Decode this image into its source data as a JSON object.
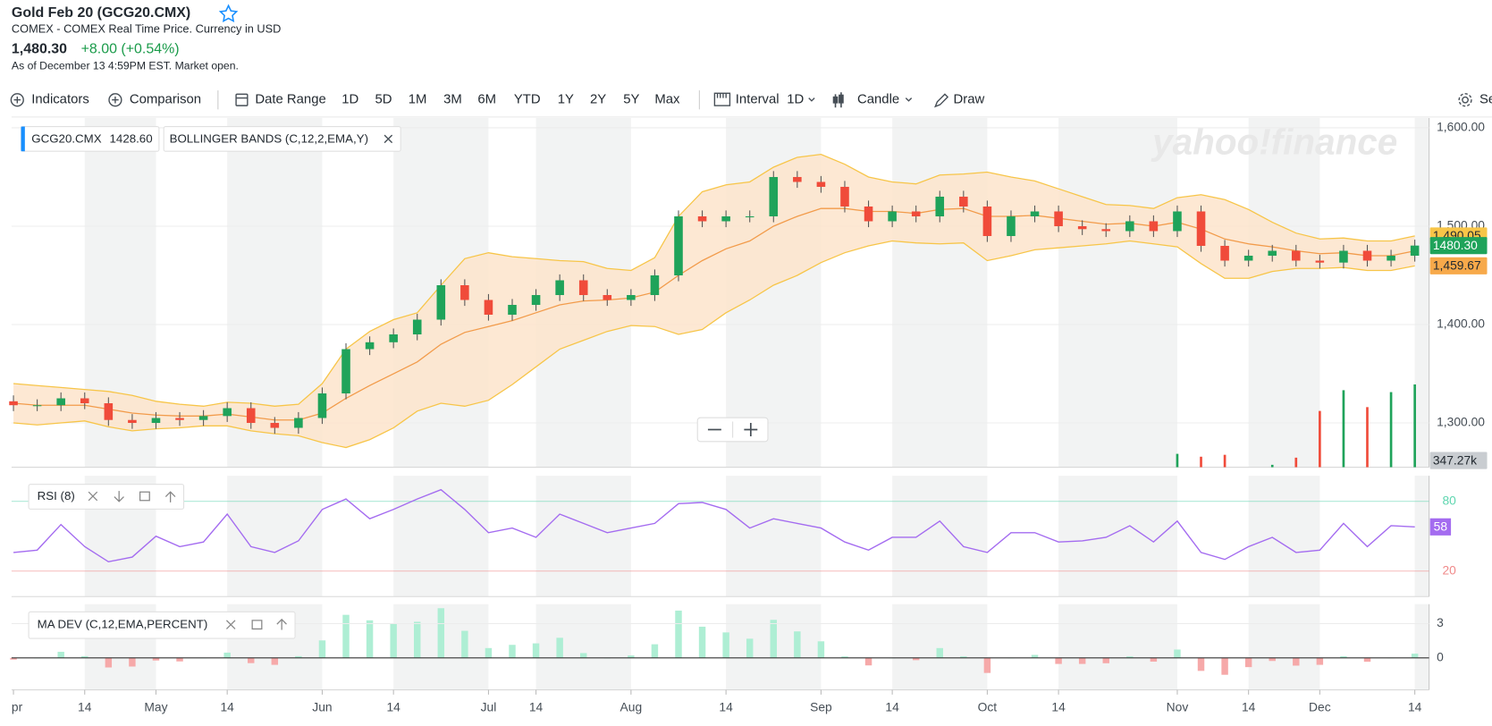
{
  "header": {
    "title": "Gold Feb 20 (GCG20.CMX)",
    "exchange": "COMEX - COMEX Real Time Price. Currency in USD",
    "price": "1,480.30",
    "change": "+8.00 (+0.54%)",
    "as_of": "As of December 13 4:59PM EST. Market open."
  },
  "toolbar": {
    "items": [
      "Indicators",
      "Comparison",
      "Date Range",
      "1D",
      "5D",
      "1M",
      "3M",
      "6M",
      "YTD",
      "1Y",
      "2Y",
      "5Y",
      "Max",
      "Interval",
      "1D",
      "Candle",
      "Draw",
      "Se"
    ]
  },
  "watermark": "yahoo!finance",
  "chart_data": [
    {
      "type": "candlestick",
      "legend_symbol": "GCG20.CMX",
      "legend_value": "1428.60",
      "legend_indicator": "BOLLINGER BANDS (C,12,2,EMA,Y)",
      "categories": [
        "pr",
        null,
        null,
        "14",
        null,
        null,
        "May",
        null,
        null,
        "14",
        null,
        null,
        null,
        "Jun",
        null,
        null,
        "14",
        null,
        null,
        null,
        "Jul",
        null,
        "14",
        null,
        null,
        null,
        "Aug",
        null,
        null,
        null,
        "14",
        null,
        null,
        null,
        "Sep",
        null,
        null,
        "14",
        null,
        null,
        null,
        "Oct",
        null,
        null,
        "14",
        null,
        null,
        null,
        null,
        "Nov",
        null,
        null,
        "14",
        null,
        null,
        "Dec",
        null,
        null,
        null,
        "14"
      ],
      "open": [
        1322,
        1318,
        1318,
        1325,
        1320,
        1303,
        1300,
        1305,
        1303,
        1307,
        1315,
        1300,
        1295,
        1305,
        1330,
        1375,
        1382,
        1390,
        1405,
        1440,
        1425,
        1410,
        1420,
        1430,
        1445,
        1430,
        1425,
        1430,
        1450,
        1510,
        1505,
        1510,
        1510,
        1550,
        1545,
        1540,
        1520,
        1505,
        1515,
        1510,
        1530,
        1520,
        1490,
        1510,
        1515,
        1500,
        1497,
        1495,
        1505,
        1495,
        1515,
        1480,
        1465,
        1470,
        1475,
        1465,
        1463,
        1475,
        1465,
        1470
      ],
      "high": [
        1328,
        1324,
        1331,
        1331,
        1326,
        1309,
        1311,
        1311,
        1313,
        1321,
        1321,
        1306,
        1311,
        1336,
        1381,
        1388,
        1396,
        1411,
        1446,
        1446,
        1431,
        1426,
        1436,
        1451,
        1451,
        1436,
        1436,
        1456,
        1516,
        1516,
        1516,
        1516,
        1556,
        1556,
        1551,
        1546,
        1526,
        1521,
        1521,
        1536,
        1536,
        1526,
        1516,
        1521,
        1521,
        1506,
        1503,
        1511,
        1511,
        1521,
        1521,
        1486,
        1476,
        1481,
        1481,
        1471,
        1481,
        1481,
        1476,
        1486.3
      ],
      "low": [
        1312,
        1312,
        1312,
        1314,
        1297,
        1294,
        1294,
        1297,
        1297,
        1301,
        1294,
        1289,
        1289,
        1299,
        1324,
        1369,
        1376,
        1384,
        1399,
        1419,
        1404,
        1404,
        1414,
        1424,
        1424,
        1419,
        1419,
        1424,
        1444,
        1499,
        1499,
        1504,
        1504,
        1539,
        1534,
        1514,
        1499,
        1499,
        1504,
        1504,
        1514,
        1484,
        1484,
        1504,
        1494,
        1491,
        1489,
        1489,
        1489,
        1489,
        1474,
        1459,
        1459,
        1464,
        1459,
        1457,
        1457,
        1459,
        1459,
        1464
      ],
      "close": {
        "values": [
          1318,
          1318,
          1325,
          1320,
          1303,
          1300,
          1305,
          1303,
          1307,
          1315,
          1300,
          1295,
          1305,
          1330,
          1375,
          1382,
          1390,
          1405,
          1440,
          1425,
          1410,
          1420,
          1430,
          1445,
          1430,
          1425,
          1430,
          1450,
          1510,
          1505,
          1510,
          1510,
          1550,
          1545,
          1540,
          1520,
          1505,
          1515,
          1510,
          1530,
          1520,
          1490,
          1510,
          1515,
          1500,
          1497,
          1495,
          1505,
          1495,
          1515,
          1480,
          1465,
          1470,
          1475,
          1465,
          1463,
          1475,
          1465,
          1470,
          1480.3
        ],
        "value_labels": [
          null,
          null,
          null,
          null,
          null,
          null,
          null,
          null,
          null,
          null,
          null,
          null,
          null,
          null,
          null,
          null,
          null,
          null,
          null,
          null,
          null,
          null,
          null,
          null,
          null,
          null,
          null,
          null,
          null,
          null,
          null,
          null,
          null,
          null,
          null,
          null,
          null,
          null,
          null,
          null,
          null,
          null,
          null,
          null,
          null,
          null,
          null,
          null,
          null,
          null,
          null,
          null,
          null,
          null,
          null,
          null,
          null,
          null,
          null,
          "1480.30"
        ],
        "color": "#1fa35a"
      },
      "up_color": "#1fa35a",
      "down_color": "#f04b3a",
      "bands": {
        "fill": "#fde4cb",
        "upper": {
          "color": "#f7c548",
          "values": [
            1340,
            1338,
            1336,
            1334,
            1332,
            1328,
            1322,
            1319,
            1317,
            1321,
            1320,
            1317,
            1319,
            1340,
            1375,
            1393,
            1405,
            1412,
            1440,
            1467,
            1473,
            1469,
            1467,
            1465,
            1464,
            1457,
            1455,
            1468,
            1510,
            1535,
            1542,
            1545,
            1560,
            1570,
            1573,
            1563,
            1550,
            1545,
            1543,
            1552,
            1553,
            1555,
            1550,
            1546,
            1538,
            1530,
            1522,
            1521,
            1518,
            1529,
            1532,
            1527,
            1517,
            1504,
            1493,
            1487,
            1488,
            1485,
            1485,
            1490.05
          ],
          "value_labels": [
            null,
            null,
            null,
            null,
            null,
            null,
            null,
            null,
            null,
            null,
            null,
            null,
            null,
            null,
            null,
            null,
            null,
            null,
            null,
            null,
            null,
            null,
            null,
            null,
            null,
            null,
            null,
            null,
            null,
            null,
            null,
            null,
            null,
            null,
            null,
            null,
            null,
            null,
            null,
            null,
            null,
            null,
            null,
            null,
            null,
            null,
            null,
            null,
            null,
            null,
            null,
            null,
            null,
            null,
            null,
            null,
            null,
            null,
            null,
            "1,490.05"
          ]
        },
        "middle": {
          "color": "#f29b4a",
          "values": [
            1320,
            1318,
            1318,
            1318,
            1314,
            1310,
            1308,
            1307,
            1307,
            1309,
            1306,
            1303,
            1303,
            1310,
            1325,
            1338,
            1350,
            1362,
            1380,
            1392,
            1398,
            1404,
            1412,
            1420,
            1424,
            1425,
            1427,
            1433,
            1450,
            1465,
            1477,
            1485,
            1500,
            1510,
            1518,
            1518,
            1515,
            1515,
            1513,
            1517,
            1518,
            1510,
            1510,
            1511,
            1508,
            1505,
            1502,
            1503,
            1500,
            1504,
            1497,
            1487,
            1482,
            1479,
            1475,
            1472,
            1473,
            1470,
            1470,
            1474.86
          ]
        },
        "lower": {
          "color": "#f7c548",
          "badge_color": "#f7a94a",
          "values": [
            1300,
            1298,
            1300,
            1302,
            1296,
            1292,
            1294,
            1295,
            1297,
            1297,
            1292,
            1289,
            1287,
            1280,
            1275,
            1283,
            1295,
            1312,
            1320,
            1317,
            1323,
            1339,
            1357,
            1375,
            1384,
            1393,
            1399,
            1398,
            1390,
            1395,
            1412,
            1425,
            1440,
            1450,
            1463,
            1473,
            1480,
            1485,
            1483,
            1482,
            1483,
            1465,
            1470,
            1476,
            1478,
            1480,
            1482,
            1485,
            1482,
            1479,
            1462,
            1447,
            1447,
            1454,
            1457,
            1457,
            1458,
            1455,
            1455,
            1459.67
          ],
          "value_labels": [
            null,
            null,
            null,
            null,
            null,
            null,
            null,
            null,
            null,
            null,
            null,
            null,
            null,
            null,
            null,
            null,
            null,
            null,
            null,
            null,
            null,
            null,
            null,
            null,
            null,
            null,
            null,
            null,
            null,
            null,
            null,
            null,
            null,
            null,
            null,
            null,
            null,
            null,
            null,
            null,
            null,
            null,
            null,
            null,
            null,
            null,
            null,
            null,
            null,
            null,
            null,
            null,
            null,
            null,
            null,
            null,
            null,
            null,
            null,
            "1,459.67"
          ]
        }
      },
      "volume": {
        "values": [
          null,
          null,
          null,
          null,
          null,
          null,
          null,
          null,
          null,
          null,
          null,
          null,
          null,
          null,
          null,
          null,
          null,
          null,
          null,
          null,
          null,
          null,
          null,
          null,
          null,
          null,
          null,
          null,
          null,
          null,
          null,
          null,
          null,
          null,
          null,
          null,
          null,
          null,
          null,
          null,
          null,
          null,
          null,
          null,
          null,
          null,
          null,
          null,
          null,
          56,
          44,
          52,
          null,
          10,
          40,
          236,
          323,
          252,
          315,
          347.27
        ],
        "value_labels": [
          null,
          null,
          null,
          null,
          null,
          null,
          null,
          null,
          null,
          null,
          null,
          null,
          null,
          null,
          null,
          null,
          null,
          null,
          null,
          null,
          null,
          null,
          null,
          null,
          null,
          null,
          null,
          null,
          null,
          null,
          null,
          null,
          null,
          null,
          null,
          null,
          null,
          null,
          null,
          null,
          null,
          null,
          null,
          null,
          null,
          null,
          null,
          null,
          null,
          null,
          null,
          null,
          null,
          null,
          null,
          null,
          null,
          null,
          null,
          "347.27k"
        ],
        "vlim": [
          0,
          1465
        ]
      },
      "ylim": [
        1255,
        1610
      ],
      "yticks": [
        {
          "value": 1300,
          "label": "1,300.00"
        },
        {
          "value": 1400,
          "label": "1,400.00"
        },
        {
          "value": 1500,
          "label": "1,500.00"
        },
        {
          "value": 1600,
          "label": "1,600.00"
        }
      ],
      "grid": true
    },
    {
      "type": "line",
      "legend": "RSI (8)",
      "color": "#a46cf0",
      "values": [
        36,
        38,
        60,
        41,
        28,
        32,
        50,
        41,
        45,
        69,
        41,
        36,
        46,
        73,
        82,
        65,
        73,
        82,
        90,
        73,
        53,
        57,
        49,
        69,
        61,
        53,
        57,
        61,
        78,
        79,
        73,
        57,
        65,
        61,
        57,
        45,
        38,
        49,
        49,
        63,
        41,
        36,
        53,
        53,
        45,
        46,
        49,
        59,
        45,
        63,
        36,
        30,
        41,
        49,
        36,
        38,
        61,
        41,
        59,
        58
      ],
      "value_labels": [
        null,
        null,
        null,
        null,
        null,
        null,
        null,
        null,
        null,
        null,
        null,
        null,
        null,
        null,
        null,
        null,
        null,
        null,
        null,
        null,
        null,
        null,
        null,
        null,
        null,
        null,
        null,
        null,
        null,
        null,
        null,
        null,
        null,
        null,
        null,
        null,
        null,
        null,
        null,
        null,
        null,
        null,
        null,
        null,
        null,
        null,
        null,
        null,
        null,
        null,
        null,
        null,
        null,
        null,
        null,
        null,
        null,
        null,
        null,
        "58"
      ],
      "ylim": [
        -2,
        102
      ],
      "yticks": [
        20,
        80
      ],
      "tick_colors": [
        "#f08a8a",
        "#5fd6b0"
      ]
    },
    {
      "type": "bar",
      "legend": "MA DEV (C,12,EMA,PERCENT)",
      "up_color": "#aeeed4",
      "down_color": "#f6a9a9",
      "values": [
        -0.15,
        0,
        0.53,
        0.15,
        -0.84,
        -0.76,
        -0.23,
        -0.31,
        0,
        0.46,
        -0.46,
        -0.61,
        0.15,
        1.53,
        3.77,
        3.29,
        2.96,
        3.16,
        4.35,
        2.37,
        0.86,
        1.14,
        1.27,
        1.76,
        0.42,
        0,
        0.21,
        1.19,
        4.14,
        2.73,
        2.23,
        1.68,
        3.33,
        2.32,
        1.45,
        0.13,
        -0.66,
        0,
        -0.2,
        0.86,
        0.13,
        -1.32,
        0,
        0.26,
        -0.53,
        -0.53,
        -0.47,
        0.13,
        -0.33,
        0.73,
        -1.14,
        -1.48,
        -0.81,
        -0.27,
        -0.68,
        -0.61,
        0.14,
        -0.34,
        0,
        0.37
      ],
      "ylim": [
        -2.8,
        4.7
      ],
      "yticks": [
        0,
        3
      ]
    }
  ]
}
